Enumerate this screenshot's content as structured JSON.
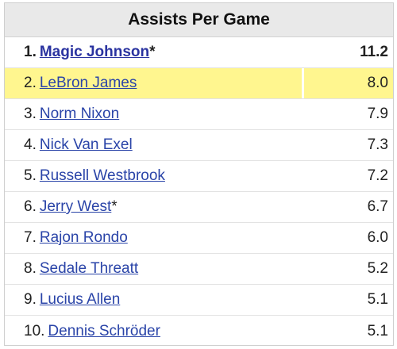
{
  "header": {
    "title": "Assists Per Game"
  },
  "highlight_color": "#fff68f",
  "link_color": "#2a44a8",
  "rows": [
    {
      "rank": "1.",
      "name": "Magic Johnson",
      "suffix": "*",
      "value": "11.2"
    },
    {
      "rank": "2.",
      "name": "LeBron James",
      "suffix": "",
      "value": "8.0"
    },
    {
      "rank": "3.",
      "name": "Norm Nixon",
      "suffix": "",
      "value": "7.9"
    },
    {
      "rank": "4.",
      "name": "Nick Van Exel",
      "suffix": "",
      "value": "7.3"
    },
    {
      "rank": "5.",
      "name": "Russell Westbrook",
      "suffix": "",
      "value": "7.2"
    },
    {
      "rank": "6.",
      "name": "Jerry West",
      "suffix": "*",
      "value": "6.7"
    },
    {
      "rank": "7.",
      "name": "Rajon Rondo",
      "suffix": "",
      "value": "6.0"
    },
    {
      "rank": "8.",
      "name": "Sedale Threatt",
      "suffix": "",
      "value": "5.2"
    },
    {
      "rank": "9.",
      "name": "Lucius Allen",
      "suffix": "",
      "value": "5.1"
    },
    {
      "rank": "10.",
      "name": "Dennis Schröder",
      "suffix": "",
      "value": "5.1"
    }
  ]
}
